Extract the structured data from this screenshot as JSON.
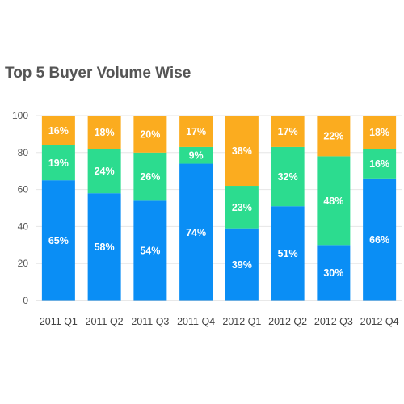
{
  "chart_data": {
    "type": "bar",
    "stacked": true,
    "title": "Top 5 Buyer Volume Wise",
    "xlabel": "",
    "ylabel": "",
    "ylim": [
      0,
      100
    ],
    "yticks": [
      0,
      20,
      40,
      60,
      80,
      100
    ],
    "grid": true,
    "categories": [
      "2011 Q1",
      "2011 Q2",
      "2011 Q3",
      "2011 Q4",
      "2012 Q1",
      "2012 Q2",
      "2012 Q3",
      "2012 Q4"
    ],
    "series": [
      {
        "color": "#0a8ef5",
        "values": [
          65,
          58,
          54,
          74,
          39,
          51,
          30,
          66
        ],
        "labels": [
          "65%",
          "58%",
          "54%",
          "74%",
          "39%",
          "51%",
          "30%",
          "66%"
        ]
      },
      {
        "color": "#2cdc8f",
        "values": [
          19,
          24,
          26,
          9,
          23,
          32,
          48,
          16
        ],
        "labels": [
          "19%",
          "24%",
          "26%",
          "9%",
          "23%",
          "32%",
          "48%",
          "16%"
        ]
      },
      {
        "color": "#fbac1f",
        "values": [
          16,
          18,
          20,
          17,
          38,
          17,
          22,
          18
        ],
        "labels": [
          "16%",
          "18%",
          "20%",
          "17%",
          "38%",
          "17%",
          "22%",
          "18%"
        ]
      }
    ]
  }
}
